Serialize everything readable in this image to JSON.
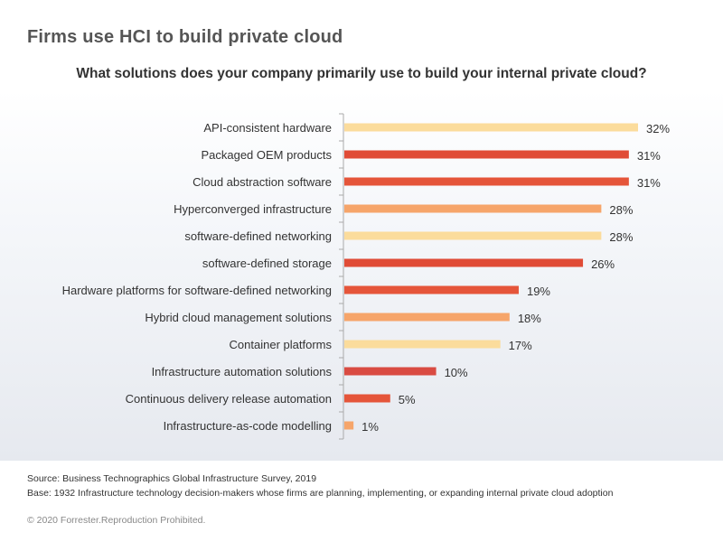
{
  "title": "Firms use HCI to build private cloud",
  "chart_data": {
    "type": "bar",
    "orientation": "horizontal",
    "title": "What solutions does your company primarily use to build your internal private cloud?",
    "xlabel": "",
    "ylabel": "",
    "xlim": [
      0,
      32
    ],
    "unit": "%",
    "categories": [
      "API-consistent hardware",
      "Packaged OEM  products",
      "Cloud abstraction software",
      "Hyperconverged infrastructure",
      "software-defined networking",
      "software-defined storage",
      "Hardware platforms for software-defined networking",
      "Hybrid cloud management solutions",
      "Container platforms",
      "Infrastructure automation solutions",
      "Continuous delivery release automation",
      "Infrastructure-as-code modelling"
    ],
    "values": [
      32,
      31,
      31,
      28,
      28,
      26,
      19,
      18,
      17,
      10,
      5,
      1
    ],
    "value_labels": [
      "32%",
      "31%",
      "31%",
      "28%",
      "28%",
      "26%",
      "19%",
      "18%",
      "17%",
      "10%",
      "5%",
      "1%"
    ],
    "bar_colors": [
      "#fbdc9c",
      "#e04b36",
      "#e5553a",
      "#f6a56a",
      "#fbdc9c",
      "#e04b36",
      "#e5553a",
      "#f6a56a",
      "#fbdc9c",
      "#d94b42",
      "#e5553a",
      "#f6a56a"
    ]
  },
  "footer": {
    "source": "Source: Business Technographics Global Infrastructure Survey, 2019",
    "base": "Base: 1932 Infrastructure technology decision-makers whose firms are planning, implementing, or expanding internal private cloud adoption"
  },
  "copyright": "© 2020 Forrester.Reproduction Prohibited."
}
